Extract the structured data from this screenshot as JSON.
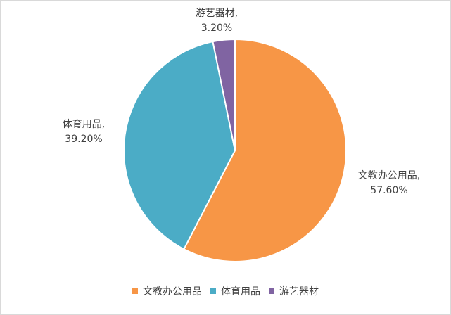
{
  "chart_data": {
    "type": "pie",
    "title": "",
    "categories": [
      "文教办公用品",
      "体育用品",
      "游艺器材"
    ],
    "values": [
      57.6,
      39.2,
      3.2
    ],
    "value_labels": [
      "57.60%",
      "39.20%",
      "3.20%"
    ],
    "colors": [
      "#f79646",
      "#4bacc6",
      "#8064a2"
    ],
    "start_angle_deg": 0,
    "direction": "clockwise",
    "legend_position": "bottom",
    "data_labels": "category, percent"
  }
}
